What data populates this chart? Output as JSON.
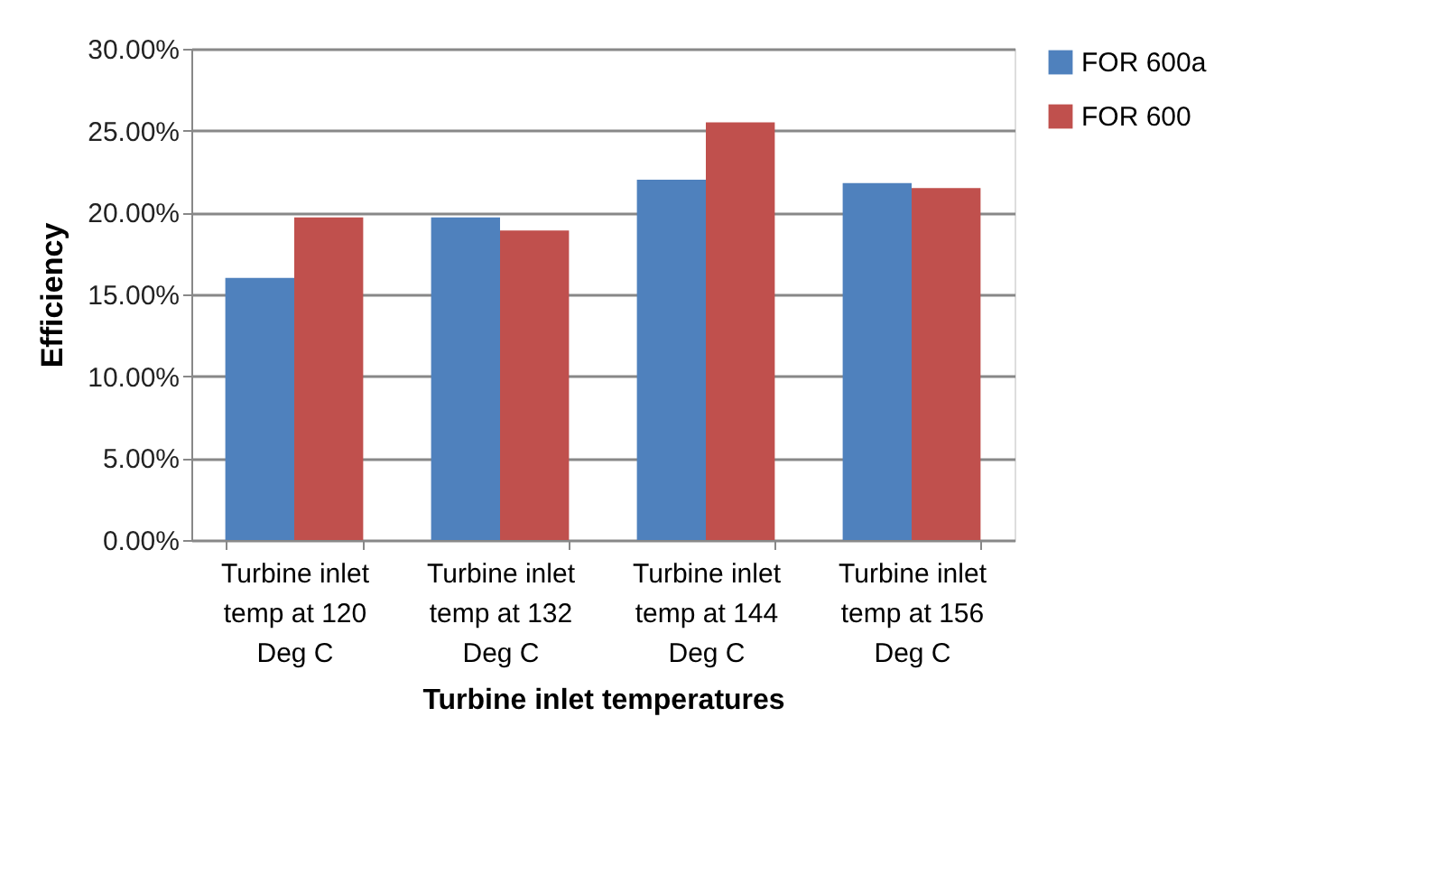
{
  "chart_data": {
    "type": "bar",
    "xlabel": "Turbine inlet temperatures",
    "ylabel": "Efficiency",
    "categories": [
      "Turbine inlet temp at 120 Deg C",
      "Turbine inlet temp at 132 Deg C",
      "Turbine inlet temp at 144 Deg C",
      "Turbine inlet temp at 156 Deg C"
    ],
    "series": [
      {
        "name": "FOR 600a",
        "color": "#4f81bd",
        "values": [
          16.0,
          19.7,
          22.0,
          21.8
        ]
      },
      {
        "name": "FOR 600",
        "color": "#c0504d",
        "values": [
          19.7,
          18.9,
          25.5,
          21.5
        ]
      }
    ],
    "ylim": [
      0,
      30
    ],
    "yticks": [
      {
        "value": 0,
        "label": "0.00%"
      },
      {
        "value": 5,
        "label": "5.00%"
      },
      {
        "value": 10,
        "label": "10.00%"
      },
      {
        "value": 15,
        "label": "15.00%"
      },
      {
        "value": 20,
        "label": "20.00%"
      },
      {
        "value": 25,
        "label": "25.00%"
      },
      {
        "value": 30,
        "label": "30.00%"
      }
    ],
    "grid": "y",
    "legend": "right"
  }
}
